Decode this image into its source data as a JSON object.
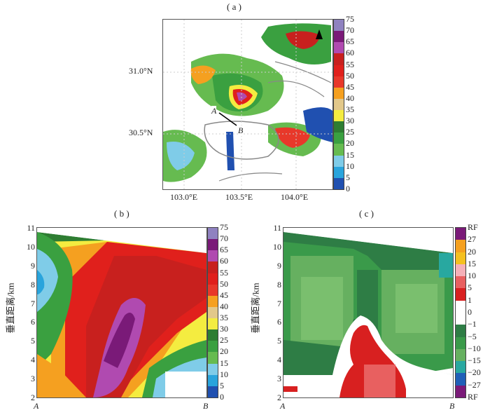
{
  "panel_a": {
    "label": "( a )",
    "lat_ticks": [
      "31.0°N",
      "30.5°N"
    ],
    "lon_ticks": [
      "103.0°E",
      "103.5°E",
      "104.0°E"
    ],
    "point_a": "A",
    "point_b": "B",
    "colorbar_ticks": [
      "75",
      "70",
      "65",
      "60",
      "55",
      "50",
      "45",
      "40",
      "35",
      "30",
      "25",
      "20",
      "15",
      "10",
      "5",
      "0"
    ]
  },
  "panel_b": {
    "label": "( b )",
    "ylabel": "垂直距离/km",
    "y_ticks": [
      "11",
      "10",
      "9",
      "8",
      "7",
      "6",
      "5",
      "4",
      "3",
      "2"
    ],
    "x_start": "A",
    "x_end": "B",
    "colorbar_ticks": [
      "75",
      "70",
      "65",
      "60",
      "55",
      "50",
      "45",
      "40",
      "35",
      "30",
      "25",
      "20",
      "15",
      "10",
      "5",
      "0"
    ]
  },
  "panel_c": {
    "label": "( c )",
    "ylabel": "垂直距离/km",
    "y_ticks": [
      "11",
      "10",
      "9",
      "8",
      "7",
      "6",
      "5",
      "4",
      "3",
      "2"
    ],
    "x_start": "A",
    "x_end": "B",
    "colorbar_ticks": [
      "RF",
      "27",
      "20",
      "15",
      "10",
      "5",
      "1",
      "0",
      "−1",
      "−5",
      "−10",
      "−15",
      "−20",
      "−27",
      "RF"
    ]
  },
  "colors": {
    "refl": [
      "#8f82c0",
      "#7a1a78",
      "#b04ab0",
      "#c8201e",
      "#e0201c",
      "#e8382a",
      "#f5a020",
      "#e2c88a",
      "#f4ec40",
      "#2e7d32",
      "#3aa040",
      "#66bb50",
      "#7fcce8",
      "#29a4dc",
      "#2050b0"
    ],
    "vel": [
      "#7a1a78",
      "#f5a020",
      "#f4c020",
      "#f5b0b8",
      "#e86060",
      "#d82020",
      "#ffffff",
      "#ffffff",
      "#2e7d45",
      "#3a9a4a",
      "#66b060",
      "#28a8a0",
      "#2060b8",
      "#7a1a78"
    ]
  }
}
